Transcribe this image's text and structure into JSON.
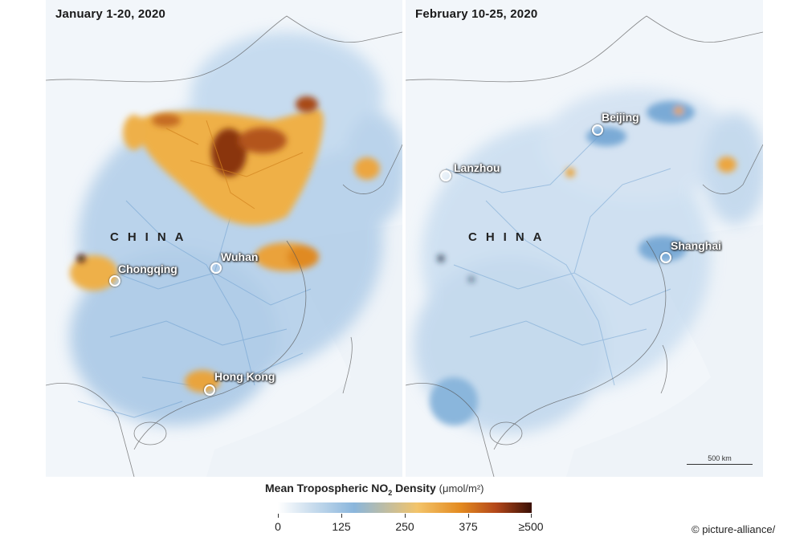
{
  "panels": {
    "left": {
      "title": "January 1-20, 2020",
      "cities": [
        "Chongqing",
        "Wuhan",
        "Hong Kong"
      ],
      "country": "CHINA"
    },
    "right": {
      "title": "February 10-25, 2020",
      "cities": [
        "Beijing",
        "Lanzhou",
        "Shanghai"
      ],
      "country": "CHINA",
      "scale": "500 km"
    }
  },
  "legend": {
    "title": "Mean Tropospheric NO",
    "subscript": "2",
    "title_rest": " Density",
    "unit": "(μmol/m²)",
    "ticks": [
      "0",
      "125",
      "250",
      "375",
      "≥500"
    ]
  },
  "credit": "© picture-alliance/",
  "colors": {
    "low": "#8ab6dc",
    "mid": "#f3c46a",
    "high": "#3a1006",
    "land": "#f2f6fa"
  }
}
